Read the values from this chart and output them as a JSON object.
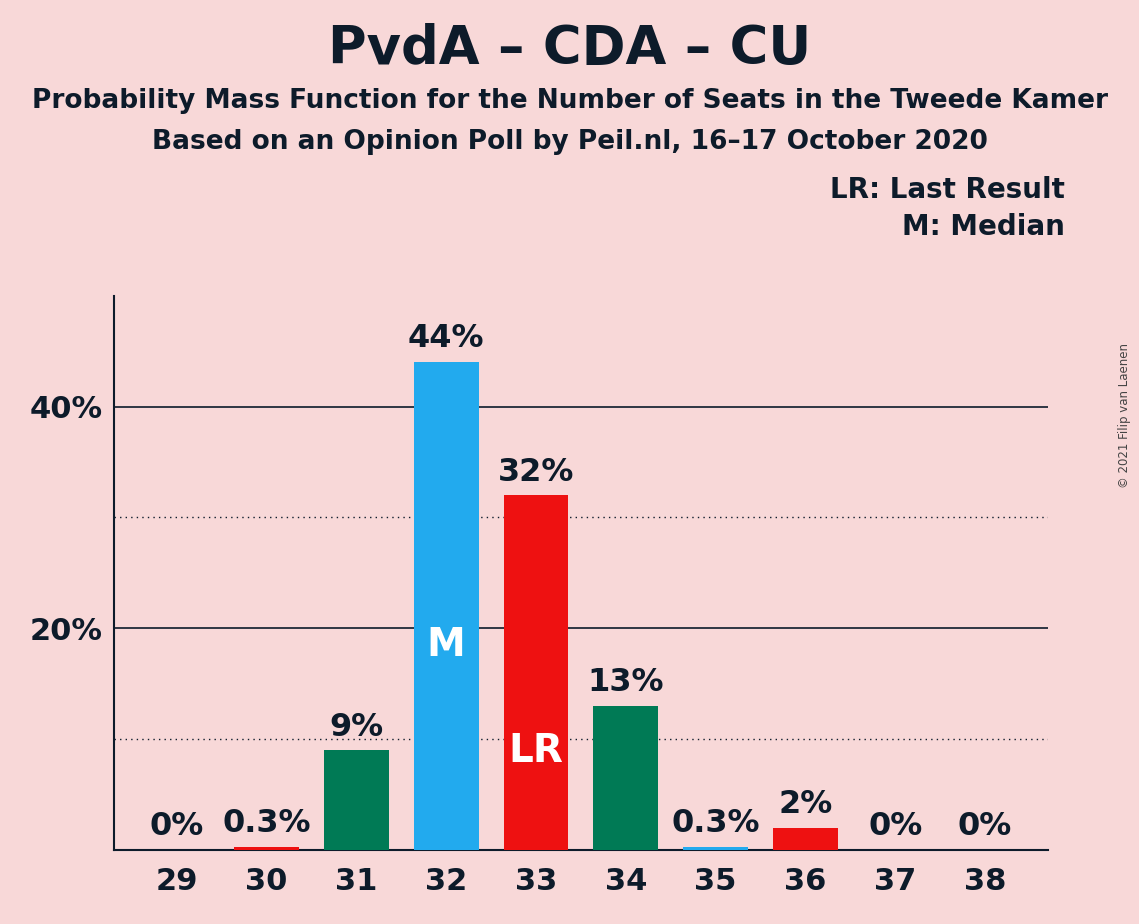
{
  "title": "PvdA – CDA – CU",
  "subtitle1": "Probability Mass Function for the Number of Seats in the Tweede Kamer",
  "subtitle2": "Based on an Opinion Poll by Peil.nl, 16–17 October 2020",
  "copyright": "© 2021 Filip van Laenen",
  "legend_lr": "LR: Last Result",
  "legend_m": "M: Median",
  "seats": [
    29,
    30,
    31,
    32,
    33,
    34,
    35,
    36,
    37,
    38
  ],
  "values": [
    0.0,
    0.3,
    9.0,
    44.0,
    32.0,
    13.0,
    0.3,
    2.0,
    0.0,
    0.0
  ],
  "labels": [
    "0%",
    "0.3%",
    "9%",
    "44%",
    "32%",
    "13%",
    "0.3%",
    "2%",
    "0%",
    "0%"
  ],
  "bar_colors": [
    "#007a55",
    "#ee1111",
    "#007a55",
    "#22aaee",
    "#ee1111",
    "#007a55",
    "#22aaee",
    "#ee1111",
    "#007a55",
    "#007a55"
  ],
  "median_seat": 32,
  "lr_seat": 33,
  "median_label": "M",
  "lr_label": "LR",
  "background_color": "#f8d8d8",
  "ylim": [
    0,
    50
  ],
  "solid_gridlines": [
    20,
    40
  ],
  "dotted_gridlines": [
    10,
    30
  ],
  "bar_width": 0.72,
  "title_fontsize": 38,
  "subtitle_fontsize": 19,
  "label_fontsize": 20,
  "tick_fontsize": 22,
  "annotation_fontsize": 23,
  "inbar_fontsize": 28
}
